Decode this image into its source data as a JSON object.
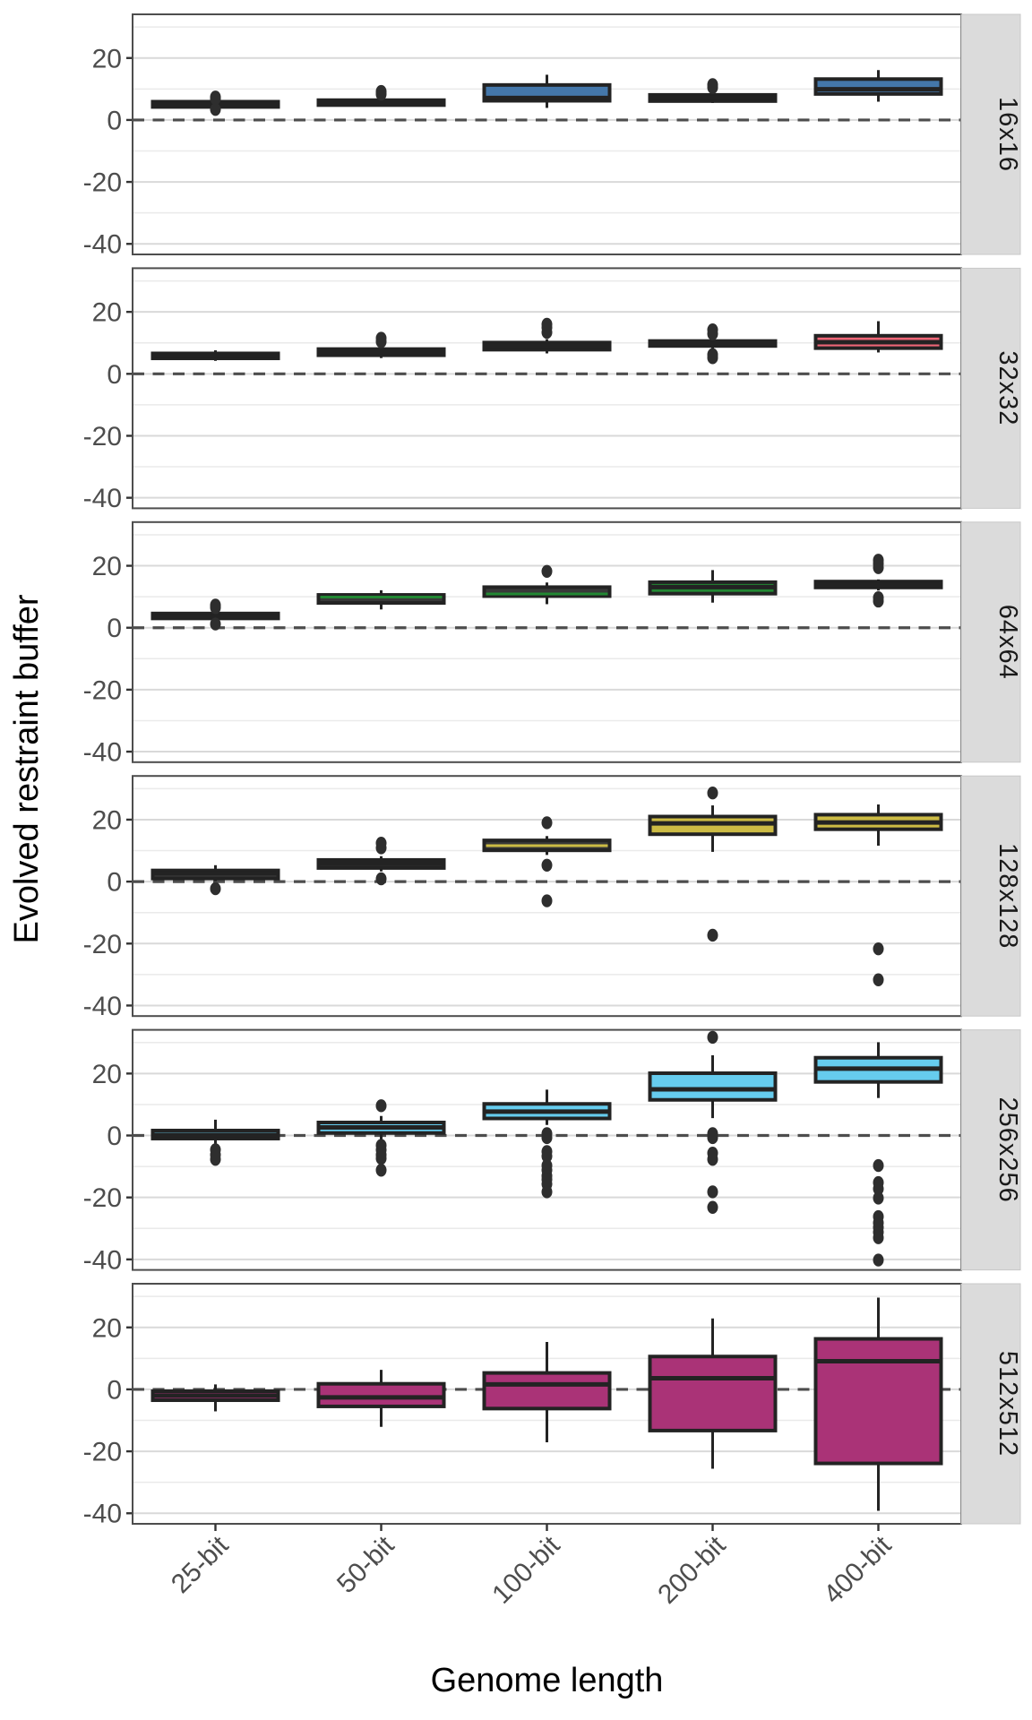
{
  "chart_data": {
    "type": "boxplot",
    "title": "",
    "xlabel": "Genome length",
    "ylabel": "Evolved restraint buffer",
    "categories": [
      "25-bit",
      "50-bit",
      "100-bit",
      "200-bit",
      "400-bit"
    ],
    "y_ticks": [
      20,
      0,
      -20,
      -40
    ],
    "y_minor_ticks": [
      30,
      10,
      -10,
      -30
    ],
    "ylim": [
      -43.4,
      34.1
    ],
    "zero_line": 0,
    "facet_strip_side": "right",
    "grid": "on",
    "facets": [
      {
        "label": "16x16",
        "color": "#4477AA",
        "boxes": [
          {
            "cat": "25-bit",
            "style": "dark",
            "q1": 4.2,
            "med": 5.0,
            "q3": 5.9,
            "lo": 3.9,
            "hi": 6.6,
            "outliers": [
              3.4,
              6.9,
              7.4
            ]
          },
          {
            "cat": "50-bit",
            "style": "dark",
            "q1": 4.8,
            "med": 5.6,
            "q3": 6.4,
            "lo": 4.4,
            "hi": 7.1,
            "outliers": [
              8.3,
              9.2
            ]
          },
          {
            "cat": "100-bit",
            "style": "fill",
            "q1": 6.2,
            "med": 7.1,
            "q3": 11.3,
            "lo": 3.9,
            "hi": 14.6,
            "outliers": []
          },
          {
            "cat": "200-bit",
            "style": "dark",
            "q1": 6.1,
            "med": 7.1,
            "q3": 8.1,
            "lo": 5.5,
            "hi": 8.9,
            "outliers": [
              10.5,
              11.4
            ]
          },
          {
            "cat": "400-bit",
            "style": "fill",
            "q1": 8.4,
            "med": 9.9,
            "q3": 13.2,
            "lo": 5.9,
            "hi": 16.1,
            "outliers": []
          }
        ]
      },
      {
        "label": "32x32",
        "color": "#EE6677",
        "boxes": [
          {
            "cat": "25-bit",
            "style": "dark",
            "q1": 5.0,
            "med": 5.8,
            "q3": 6.6,
            "lo": 4.2,
            "hi": 7.6,
            "outliers": []
          },
          {
            "cat": "50-bit",
            "style": "dark",
            "q1": 6.0,
            "med": 7.0,
            "q3": 8.0,
            "lo": 5.1,
            "hi": 8.9,
            "outliers": [
              10.4,
              11.5
            ]
          },
          {
            "cat": "100-bit",
            "style": "dark",
            "q1": 7.8,
            "med": 9.0,
            "q3": 10.1,
            "lo": 6.6,
            "hi": 11.2,
            "outliers": [
              13.4,
              14.9,
              16.0
            ]
          },
          {
            "cat": "200-bit",
            "style": "dark",
            "q1": 9.0,
            "med": 9.8,
            "q3": 10.6,
            "lo": 8.1,
            "hi": 11.5,
            "outliers": [
              5.2,
              6.2,
              12.9,
              14.2
            ]
          },
          {
            "cat": "400-bit",
            "style": "fill",
            "q1": 8.3,
            "med": 10.2,
            "q3": 12.3,
            "lo": 6.9,
            "hi": 17.0,
            "outliers": []
          }
        ]
      },
      {
        "label": "64x64",
        "color": "#228833",
        "boxes": [
          {
            "cat": "25-bit",
            "style": "dark",
            "q1": 3.0,
            "med": 3.8,
            "q3": 4.6,
            "lo": 2.2,
            "hi": 5.6,
            "outliers": [
              1.2,
              6.5,
              7.3
            ]
          },
          {
            "cat": "50-bit",
            "style": "median",
            "q1": 8.0,
            "med": 9.9,
            "q3": 10.6,
            "lo": 5.9,
            "hi": 12.1,
            "outliers": []
          },
          {
            "cat": "100-bit",
            "style": "median",
            "q1": 10.2,
            "med": 10.9,
            "q3": 13.1,
            "lo": 7.6,
            "hi": 14.6,
            "outliers": [
              18.2
            ]
          },
          {
            "cat": "200-bit",
            "style": "fill",
            "q1": 11.0,
            "med": 13.1,
            "q3": 14.7,
            "lo": 8.1,
            "hi": 18.6,
            "outliers": []
          },
          {
            "cat": "400-bit",
            "style": "dark",
            "q1": 13.0,
            "med": 13.9,
            "q3": 14.9,
            "lo": 12.0,
            "hi": 15.6,
            "outliers": [
              8.6,
              9.7,
              19.4,
              20.7,
              21.8
            ]
          }
        ]
      },
      {
        "label": "128x128",
        "color": "#CCBB44",
        "boxes": [
          {
            "cat": "25-bit",
            "style": "dark",
            "q1": 1.0,
            "med": 2.7,
            "q3": 3.6,
            "lo": 0.1,
            "hi": 5.3,
            "outliers": [
              -2.3
            ]
          },
          {
            "cat": "50-bit",
            "style": "dark",
            "q1": 4.4,
            "med": 5.8,
            "q3": 7.0,
            "lo": 3.3,
            "hi": 8.2,
            "outliers": [
              0.9,
              10.9,
              12.4
            ]
          },
          {
            "cat": "100-bit",
            "style": "median",
            "q1": 10.1,
            "med": 11.6,
            "q3": 13.3,
            "lo": 8.6,
            "hi": 14.7,
            "outliers": [
              19.0,
              5.3,
              -6.2
            ]
          },
          {
            "cat": "200-bit",
            "style": "fill",
            "q1": 15.3,
            "med": 18.8,
            "q3": 21.0,
            "lo": 9.6,
            "hi": 24.6,
            "outliers": [
              28.6,
              -17.3
            ]
          },
          {
            "cat": "400-bit",
            "style": "fill",
            "q1": 16.9,
            "med": 19.1,
            "q3": 21.6,
            "lo": 11.6,
            "hi": 24.9,
            "outliers": [
              -21.7,
              -31.7
            ]
          }
        ]
      },
      {
        "label": "256x256",
        "color": "#66CCEE",
        "boxes": [
          {
            "cat": "25-bit",
            "style": "fill",
            "q1": -1.0,
            "med": 0.2,
            "q3": 1.6,
            "lo": -2.6,
            "hi": 5.1,
            "outliers": [
              -4.6,
              -6.2,
              -7.7
            ]
          },
          {
            "cat": "50-bit",
            "style": "fill",
            "q1": 0.8,
            "med": 2.6,
            "q3": 4.2,
            "lo": -1.4,
            "hi": 6.3,
            "outliers": [
              9.6,
              -3.2,
              -4.7,
              -6.2,
              -7.4,
              -11.2
            ]
          },
          {
            "cat": "100-bit",
            "style": "fill",
            "q1": 5.5,
            "med": 7.7,
            "q3": 10.2,
            "lo": 3.4,
            "hi": 14.8,
            "outliers": [
              0.6,
              -0.7,
              -5.2,
              -6.7,
              -9.7,
              -11.2,
              -13.0,
              -14.2,
              -15.7,
              -18.2
            ]
          },
          {
            "cat": "200-bit",
            "style": "fill",
            "q1": 11.5,
            "med": 14.9,
            "q3": 20.1,
            "lo": 5.6,
            "hi": 25.9,
            "outliers": [
              31.7,
              0.6,
              -0.7,
              -5.7,
              -7.7,
              -18.2,
              -23.2
            ]
          },
          {
            "cat": "400-bit",
            "style": "fill",
            "q1": 17.3,
            "med": 21.6,
            "q3": 25.1,
            "lo": 12.1,
            "hi": 30.1,
            "outliers": [
              -9.7,
              -15.2,
              -17.2,
              -20.2,
              -26.2,
              -28.2,
              -29.7,
              -31.2,
              -33.0,
              -40.2
            ]
          }
        ]
      },
      {
        "label": "512x512",
        "color": "#AA3377",
        "boxes": [
          {
            "cat": "25-bit",
            "style": "fill",
            "q1": -3.5,
            "med": -2.0,
            "q3": -0.6,
            "lo": -7.1,
            "hi": 1.6,
            "outliers": []
          },
          {
            "cat": "50-bit",
            "style": "fill",
            "q1": -5.5,
            "med": -2.6,
            "q3": 1.8,
            "lo": -12.1,
            "hi": 6.3,
            "outliers": []
          },
          {
            "cat": "100-bit",
            "style": "fill",
            "q1": -6.2,
            "med": 1.6,
            "q3": 5.3,
            "lo": -17.1,
            "hi": 15.3,
            "outliers": []
          },
          {
            "cat": "200-bit",
            "style": "fill",
            "q1": -13.3,
            "med": 3.6,
            "q3": 10.6,
            "lo": -25.6,
            "hi": 22.9,
            "outliers": []
          },
          {
            "cat": "400-bit",
            "style": "fill",
            "q1": -23.9,
            "med": 9.1,
            "q3": 16.3,
            "lo": -39.2,
            "hi": 29.6,
            "outliers": []
          }
        ]
      }
    ],
    "theme": {
      "background": "#FFFFFF",
      "panel_bg": "#FFFFFF",
      "panel_border": "#4D4D4D",
      "grid_major": "#D9D9D9",
      "grid_minor": "#EAEAEA",
      "zero_line": "#4D4D4D",
      "box_dark_fill": "#383838",
      "box_stroke": "#232323",
      "outlier": "#2E2E2E",
      "strip_bg": "#DBDBDB",
      "strip_border": "#C8C8C8",
      "strip_text": "#1A1A1A",
      "tick_text": "#4D4D4D",
      "tick_mark": "#333333",
      "axis_title_text": "#000000"
    }
  }
}
